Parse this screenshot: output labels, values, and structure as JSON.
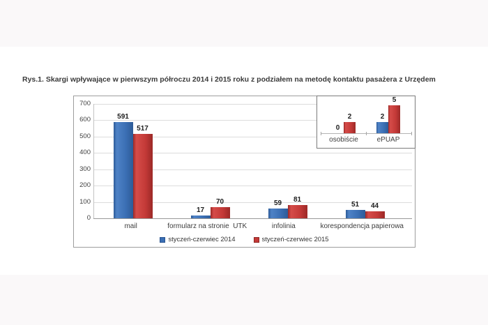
{
  "page": {
    "figure_title": "Rys.1. Skargi wpływające w pierwszym półroczu 2014 i 2015 roku z podziałem na metodę kontaktu pasażera z Urzędem"
  },
  "colors": {
    "bar_2014": "#3B6FB4",
    "bar_2014_edge": "#27538F",
    "bar_2015": "#C43A38",
    "bar_2015_edge": "#8E2422",
    "chart_border": "#9D9D9D",
    "gridline": "#DCDCDC"
  },
  "chart_data": {
    "type": "bar",
    "title": "Rys.1. Skargi wpływające w pierwszym półroczu 2014 i 2015 roku z podziałem na metodę kontaktu pasażera z Urzędem",
    "categories": [
      "mail",
      "formularz na stronie  UTK",
      "infolinia",
      "korespondencja papierowa"
    ],
    "series": [
      {
        "name": "styczeń-czerwiec 2014",
        "color": "#3B6FB4",
        "edge": "#27538F",
        "values": [
          591,
          17,
          59,
          51
        ]
      },
      {
        "name": "styczeń-czerwiec 2015",
        "color": "#C43A38",
        "edge": "#8E2422",
        "values": [
          517,
          70,
          81,
          44
        ]
      }
    ],
    "xlabel": "",
    "ylabel": "",
    "ylim": [
      0,
      700
    ],
    "yticks": [
      0,
      100,
      200,
      300,
      400,
      500,
      600,
      700
    ],
    "grid": true,
    "legend_position": "bottom",
    "inset": {
      "type": "bar",
      "position": "top-right",
      "categories": [
        "osobiście",
        "ePUAP"
      ],
      "series": [
        {
          "name": "styczeń-czerwiec 2014",
          "values": [
            0,
            2
          ]
        },
        {
          "name": "styczeń-czerwiec 2015",
          "values": [
            2,
            5
          ]
        }
      ],
      "ylim": [
        0,
        6
      ]
    }
  }
}
